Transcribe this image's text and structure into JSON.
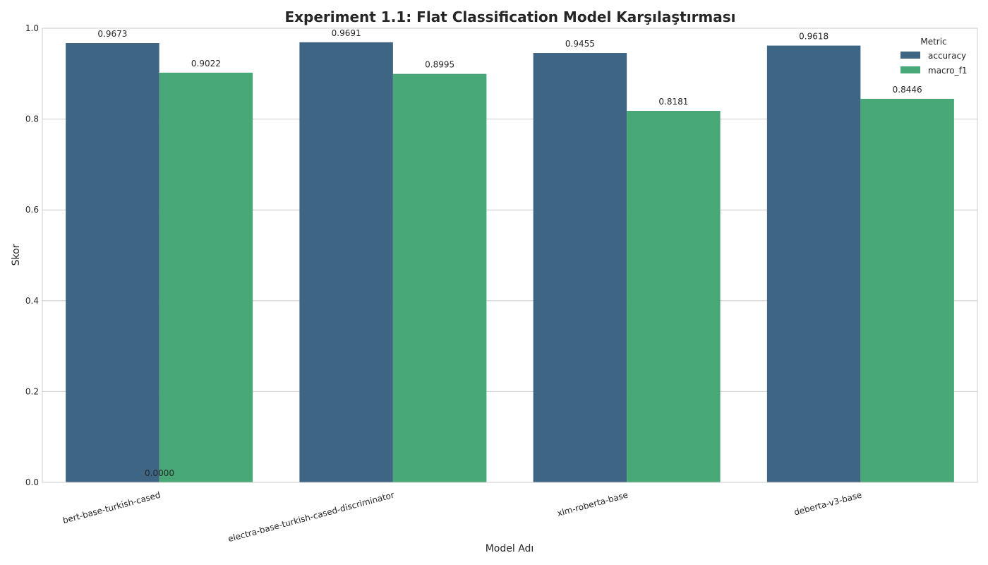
{
  "chart_data": {
    "type": "bar",
    "title": "Experiment 1.1: Flat Classification Model Karşılaştırması",
    "xlabel": "Model Adı",
    "ylabel": "Skor",
    "ylim": [
      0,
      1.0
    ],
    "yticks": [
      "0.0",
      "0.2",
      "0.4",
      "0.6",
      "0.8",
      "1.0"
    ],
    "categories": [
      "bert-base-turkish-cased",
      "electra-base-turkish-cased-discriminator",
      "xlm-roberta-base",
      "deberta-v3-base"
    ],
    "series": [
      {
        "name": "accuracy",
        "color": "#3e6583",
        "values": [
          0.9673,
          0.9691,
          0.9455,
          0.9618
        ],
        "labels": [
          "0.9673",
          "0.9691",
          "0.9455",
          "0.9618"
        ]
      },
      {
        "name": "macro_f1",
        "color": "#48a878",
        "values": [
          0.9022,
          0.8995,
          0.8181,
          0.8446
        ],
        "labels": [
          "0.9022",
          "0.8995",
          "0.8181",
          "0.8446"
        ]
      }
    ],
    "extra_annotation": "0.0000",
    "legend": {
      "title": "Metric",
      "position": "top-right"
    },
    "grid": "horizontal"
  }
}
